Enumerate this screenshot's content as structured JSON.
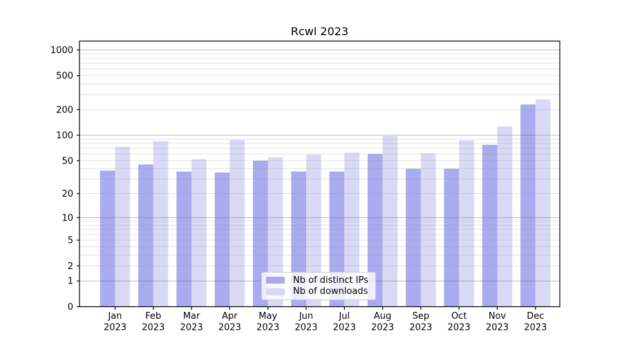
{
  "title": "Rcwl 2023",
  "colors": {
    "ips_bar": "#aaaaee",
    "downloads_bar": "#d9d9f6",
    "axis": "#000000",
    "grid_major": "#666666",
    "grid_minor": "#999999",
    "legend_border": "#cccccc",
    "tick_text": "#000000"
  },
  "y_axis": {
    "scale": "log1p",
    "ticks": [
      {
        "value": 0,
        "label": "0"
      },
      {
        "value": 1,
        "label": "1"
      },
      {
        "value": 2,
        "label": "2"
      },
      {
        "value": 5,
        "label": "5"
      },
      {
        "value": 10,
        "label": "10"
      },
      {
        "value": 20,
        "label": "20"
      },
      {
        "value": 50,
        "label": "50"
      },
      {
        "value": 100,
        "label": "100"
      },
      {
        "value": 200,
        "label": "200"
      },
      {
        "value": 500,
        "label": "500"
      },
      {
        "value": 1000,
        "label": "1000"
      }
    ],
    "major_gridlines": [
      1,
      10,
      100,
      1000
    ],
    "minor_gridlines": [
      2,
      3,
      4,
      5,
      6,
      7,
      8,
      9,
      20,
      30,
      40,
      50,
      60,
      70,
      80,
      90,
      200,
      300,
      400,
      500,
      600,
      700,
      800,
      900
    ]
  },
  "x_axis": {
    "categories": [
      {
        "month": "Jan",
        "year": "2023"
      },
      {
        "month": "Feb",
        "year": "2023"
      },
      {
        "month": "Mar",
        "year": "2023"
      },
      {
        "month": "Apr",
        "year": "2023"
      },
      {
        "month": "May",
        "year": "2023"
      },
      {
        "month": "Jun",
        "year": "2023"
      },
      {
        "month": "Jul",
        "year": "2023"
      },
      {
        "month": "Aug",
        "year": "2023"
      },
      {
        "month": "Sep",
        "year": "2023"
      },
      {
        "month": "Oct",
        "year": "2023"
      },
      {
        "month": "Nov",
        "year": "2023"
      },
      {
        "month": "Dec",
        "year": "2023"
      }
    ]
  },
  "chart_data": {
    "type": "bar",
    "title": "Rcwl 2023",
    "xlabel": "",
    "ylabel": "",
    "yscale": "log1p",
    "yticks": [
      0,
      1,
      2,
      5,
      10,
      20,
      50,
      100,
      200,
      500,
      1000
    ],
    "ylim": [
      0,
      1270
    ],
    "grid": "on",
    "legend_position": "lower center",
    "categories": [
      "Jan 2023",
      "Feb 2023",
      "Mar 2023",
      "Apr 2023",
      "May 2023",
      "Jun 2023",
      "Jul 2023",
      "Aug 2023",
      "Sep 2023",
      "Oct 2023",
      "Nov 2023",
      "Dec 2023"
    ],
    "series": [
      {
        "name": "Nb of distinct IPs",
        "color": "#aaaaee",
        "values": [
          38,
          45,
          37,
          36,
          50,
          37,
          37,
          60,
          40,
          40,
          77,
          230
        ]
      },
      {
        "name": "Nb of downloads",
        "color": "#d9d9f6",
        "values": [
          73,
          85,
          52,
          88,
          55,
          59,
          62,
          98,
          61,
          87,
          127,
          264
        ]
      }
    ]
  }
}
